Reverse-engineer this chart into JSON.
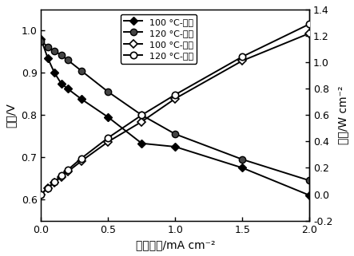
{
  "voltage_100_x": [
    0.0,
    0.05,
    0.1,
    0.15,
    0.2,
    0.3,
    0.5,
    0.75,
    1.0,
    1.5,
    2.0
  ],
  "voltage_100_y": [
    0.98,
    0.935,
    0.9,
    0.875,
    0.862,
    0.838,
    0.795,
    0.733,
    0.725,
    0.675,
    0.61
  ],
  "voltage_120_x": [
    0.0,
    0.05,
    0.1,
    0.15,
    0.2,
    0.3,
    0.5,
    0.75,
    1.0,
    1.5,
    2.0
  ],
  "voltage_120_y": [
    0.975,
    0.962,
    0.952,
    0.942,
    0.93,
    0.905,
    0.855,
    0.8,
    0.755,
    0.695,
    0.645
  ],
  "power_100_x": [
    0.0,
    0.05,
    0.1,
    0.15,
    0.2,
    0.3,
    0.5,
    0.75,
    1.0,
    1.5,
    2.0
  ],
  "power_100_y": [
    0.0,
    0.047,
    0.09,
    0.131,
    0.172,
    0.251,
    0.398,
    0.55,
    0.725,
    1.012,
    1.22
  ],
  "power_120_x": [
    0.0,
    0.05,
    0.1,
    0.15,
    0.2,
    0.3,
    0.5,
    0.75,
    1.0,
    1.5,
    2.0
  ],
  "power_120_y": [
    0.0,
    0.048,
    0.095,
    0.141,
    0.186,
    0.272,
    0.428,
    0.6,
    0.755,
    1.043,
    1.29
  ],
  "xlabel": "电流密度/mA cm⁻²",
  "ylabel_left": "电压/V",
  "ylabel_right": "功率/W cm⁻²",
  "legend_100v": "100 °C-电压",
  "legend_120v": "120 °C-电压",
  "legend_100p": "100 °C-功率",
  "legend_120p": "120 °C-功率",
  "xlim": [
    0,
    2.0
  ],
  "ylim_left": [
    0.55,
    1.05
  ],
  "ylim_right": [
    -0.2,
    1.4
  ],
  "xticks": [
    0.0,
    0.5,
    1.0,
    1.5,
    2.0
  ],
  "yticks_left": [
    0.6,
    0.7,
    0.8,
    0.9,
    1.0
  ],
  "yticks_right": [
    -0.2,
    0.0,
    0.2,
    0.4,
    0.6,
    0.8,
    1.0,
    1.2,
    1.4
  ],
  "bg_color": "#ffffff"
}
